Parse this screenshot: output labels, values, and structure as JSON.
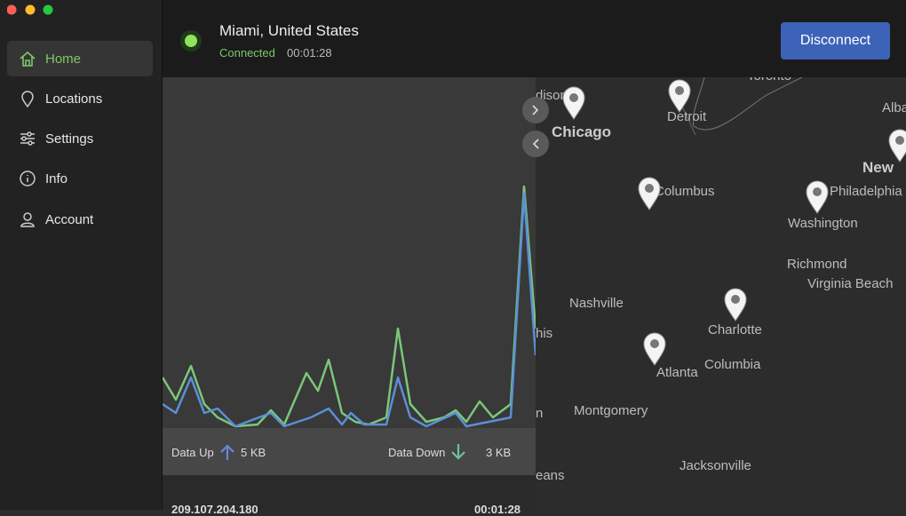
{
  "sidebar": {
    "items": [
      "Home",
      "Locations",
      "Settings",
      "Info",
      "Account"
    ]
  },
  "header": {
    "location": "Miami, United States",
    "status": "Connected",
    "duration": "00:01:28",
    "button": "Disconnect"
  },
  "traffic": {
    "up_label": "Data Up",
    "up_value": "5 KB",
    "down_label": "Data Down",
    "down_value": "3 KB"
  },
  "session": {
    "ip": "209.107.204.180",
    "duration": "00:01:28"
  },
  "map": {
    "labels": [
      "dison",
      "Chicago",
      "Detroit",
      "Toronto",
      "Alba",
      "Columbus",
      "New",
      "Philadelphia",
      "Washington",
      "Richmond",
      "Virginia Beach",
      "Nashville",
      "his",
      "Charlotte",
      "Columbia",
      "Atlanta",
      "Montgomery",
      "n",
      "Jacksonville",
      "eans"
    ]
  }
}
